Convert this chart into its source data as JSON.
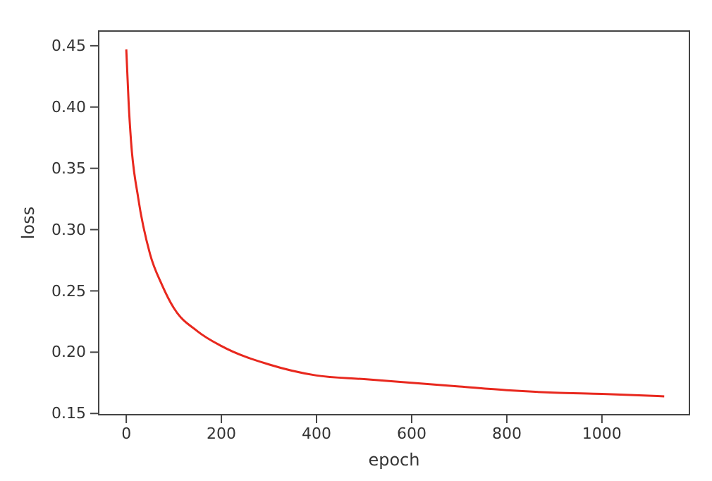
{
  "chart_data": {
    "type": "line",
    "xlabel": "epoch",
    "ylabel": "loss",
    "x": [
      0,
      5,
      10,
      25,
      50,
      75,
      100,
      150,
      200,
      300,
      400,
      500,
      600,
      700,
      800,
      900,
      1000,
      1131
    ],
    "series": [
      {
        "color": "#e8281e",
        "values": [
          0.447,
          0.403,
          0.372,
          0.326,
          0.28,
          0.255,
          0.236,
          0.217,
          0.205,
          0.19,
          0.181,
          0.178,
          0.175,
          0.172,
          0.169,
          0.167,
          0.166,
          0.164
        ]
      }
    ],
    "xlim": [
      -58,
      1184
    ],
    "ylim": [
      0.149,
      0.462
    ],
    "xticks": [
      0,
      200,
      400,
      600,
      800,
      1000
    ],
    "yticks": [
      {
        "value": 0.15,
        "label": "0.15"
      },
      {
        "value": 0.2,
        "label": "0.20"
      },
      {
        "value": 0.25,
        "label": "0.25"
      },
      {
        "value": 0.3,
        "label": "0.30"
      },
      {
        "value": 0.35,
        "label": "0.35"
      },
      {
        "value": 0.4,
        "label": "0.40"
      },
      {
        "value": 0.45,
        "label": "0.45"
      }
    ],
    "grid": false
  }
}
